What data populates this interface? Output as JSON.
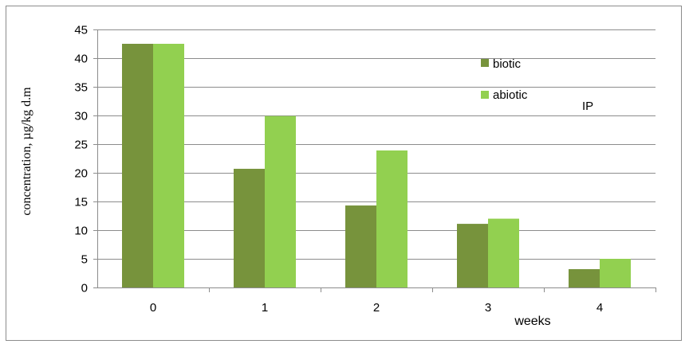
{
  "chart_data": {
    "type": "bar",
    "categories": [
      "0",
      "1",
      "2",
      "3",
      "4"
    ],
    "series": [
      {
        "name": "biotic",
        "values": [
          42.5,
          20.7,
          14.3,
          11.1,
          3.2
        ],
        "color": "#77933c"
      },
      {
        "name": "abiotic",
        "values": [
          42.5,
          29.9,
          23.9,
          12.0,
          5.0
        ],
        "color": "#92d050"
      }
    ],
    "title": "",
    "xlabel": "weeks",
    "ylabel": "concentration, µg/kg d.m",
    "ylim": [
      0,
      45
    ],
    "yticks": [
      0,
      5,
      10,
      15,
      20,
      25,
      30,
      35,
      40,
      45
    ],
    "grid": true,
    "legend_position": "top-right",
    "annotation": "IP"
  }
}
